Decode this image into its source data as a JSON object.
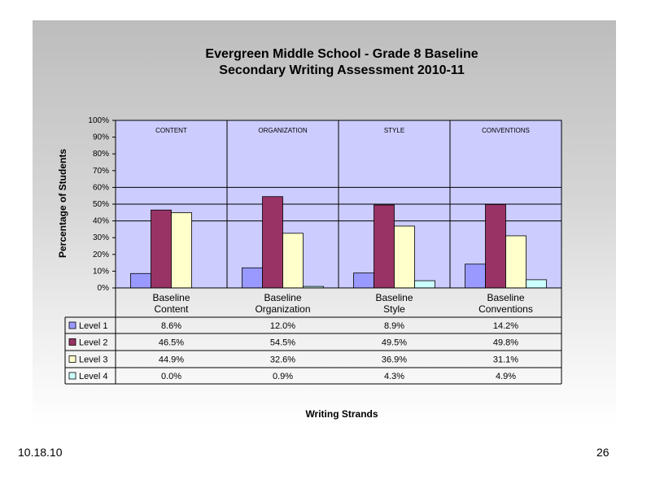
{
  "slide": {
    "date": "10.18.10",
    "page_number": "26"
  },
  "chart_data": {
    "type": "bar",
    "title": "Evergreen Middle School - Grade 8 Baseline",
    "subtitle": "Secondary Writing Assessment 2010-11",
    "xlabel": "Writing Strands",
    "ylabel": "Percentage of Students",
    "ylim": [
      0,
      100
    ],
    "y_ticks": [
      "0%",
      "10%",
      "20%",
      "30%",
      "40%",
      "50%",
      "60%",
      "70%",
      "80%",
      "90%",
      "100%"
    ],
    "categories": [
      "Baseline Content",
      "Baseline Organization",
      "Baseline Style",
      "Baseline Conventions"
    ],
    "category_lines": [
      [
        "Baseline",
        "Content"
      ],
      [
        "Baseline",
        "Organization"
      ],
      [
        "Baseline",
        "Style"
      ],
      [
        "Baseline",
        "Conventions"
      ]
    ],
    "panel_labels": [
      "CONTENT",
      "ORGANIZATION",
      "STYLE",
      "CONVENTIONS"
    ],
    "series": [
      {
        "name": "Level 1",
        "color": "#9999ff",
        "values": [
          8.6,
          12.0,
          8.9,
          14.2
        ],
        "labels": [
          "8.6%",
          "12.0%",
          "8.9%",
          "14.2%"
        ]
      },
      {
        "name": "Level 2",
        "color": "#993366",
        "values": [
          46.5,
          54.5,
          49.5,
          49.8
        ],
        "labels": [
          "46.5%",
          "54.5%",
          "49.5%",
          "49.8%"
        ]
      },
      {
        "name": "Level 3",
        "color": "#ffffcc",
        "values": [
          44.9,
          32.6,
          36.9,
          31.1
        ],
        "labels": [
          "44.9%",
          "32.6%",
          "36.9%",
          "31.1%"
        ]
      },
      {
        "name": "Level 4",
        "color": "#ccffff",
        "values": [
          0.0,
          0.9,
          4.3,
          4.9
        ],
        "labels": [
          "0.0%",
          "0.9%",
          "4.3%",
          "4.9%"
        ]
      }
    ],
    "reference_lines": [
      40,
      50,
      60
    ],
    "plot_background": "#ccccff",
    "grid": false,
    "legend": "data-table"
  }
}
